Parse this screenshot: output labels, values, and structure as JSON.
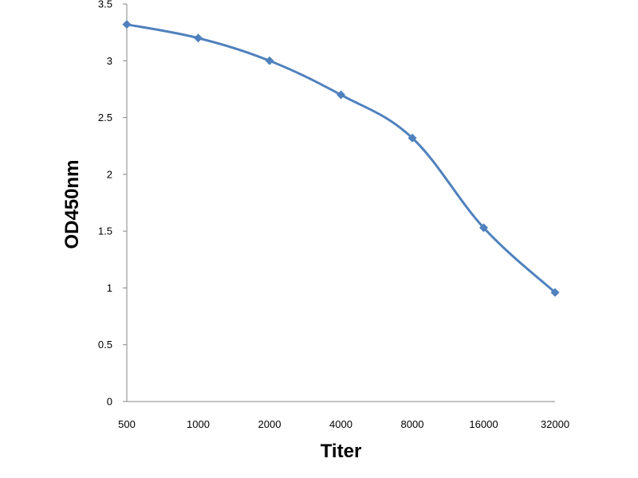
{
  "chart_data": {
    "type": "line",
    "title": "",
    "xlabel": "Titer",
    "ylabel": "OD450nm",
    "categories": [
      "500",
      "1000",
      "2000",
      "4000",
      "8000",
      "16000",
      "32000"
    ],
    "series": [
      {
        "values": [
          3.32,
          3.2,
          3.0,
          2.7,
          2.32,
          1.53,
          0.96
        ]
      }
    ],
    "ylim": [
      0,
      3.5
    ],
    "yticks": [
      "0",
      "0.5",
      "1",
      "1.5",
      "2",
      "2.5",
      "3",
      "3.5"
    ],
    "grid": false,
    "legend": "none",
    "colors": {
      "series": "#4f81bd",
      "axis": "#868686",
      "text": "#000000"
    },
    "marker": "diamond"
  }
}
